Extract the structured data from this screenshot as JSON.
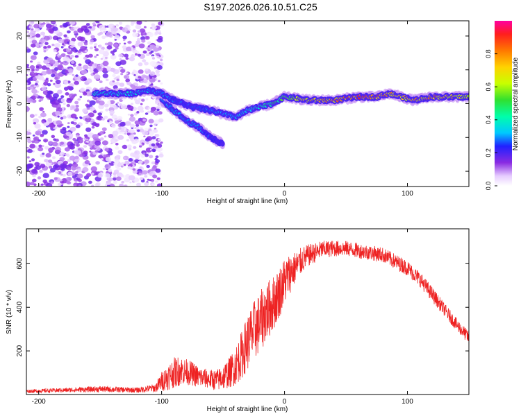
{
  "title": "S197.2026.026.10.51.C25",
  "chart_data": [
    {
      "type": "heatmap",
      "panel": "spectrogram",
      "xlabel": "Height of straight line (km)",
      "ylabel": "Frequency (Hz)",
      "xlim": [
        -210,
        150
      ],
      "ylim": [
        -24.5,
        24.5
      ],
      "xticks": [
        -200,
        -100,
        0,
        100
      ],
      "xtick_labels": [
        "-200",
        "-100",
        "0",
        "100"
      ],
      "yticks": [
        -20,
        -10,
        0,
        10,
        20
      ],
      "ytick_labels": [
        "-20",
        "-10",
        "0",
        "10",
        "20"
      ],
      "colorbar": {
        "label": "Normalized spectral amplitude",
        "range": [
          0,
          1
        ],
        "ticks": [
          0,
          0.2,
          0.4,
          0.6,
          0.8
        ],
        "tick_labels": [
          "0.0",
          "0.2",
          "0.4",
          "0.6",
          "0.8"
        ]
      },
      "ridge": {
        "x": [
          -155,
          -140,
          -125,
          -110,
          -100,
          -90,
          -75,
          -60,
          -50,
          -40,
          -30,
          -20,
          -10,
          0,
          20,
          40,
          60,
          75,
          85,
          95,
          105,
          120,
          140,
          150
        ],
        "freq": [
          3,
          3,
          3,
          4,
          3,
          1,
          -1,
          -2,
          -3,
          -4,
          -2,
          -1,
          0,
          2,
          1,
          1,
          2,
          2,
          3,
          2,
          1,
          2,
          2,
          2
        ],
        "amplitude": [
          0.35,
          0.35,
          0.35,
          0.3,
          0.3,
          0.25,
          0.25,
          0.3,
          0.3,
          0.3,
          0.35,
          0.4,
          0.45,
          0.5,
          0.7,
          0.75,
          0.8,
          0.8,
          0.75,
          0.7,
          0.7,
          0.75,
          0.7,
          0.6
        ]
      },
      "branch": {
        "x": [
          -100,
          -90,
          -80,
          -70,
          -60,
          -50
        ],
        "freq": [
          1,
          -2,
          -5,
          -7,
          -10,
          -12
        ],
        "amplitude": [
          0.3,
          0.3,
          0.3,
          0.3,
          0.25,
          0.2
        ]
      }
    },
    {
      "type": "line",
      "panel": "snr",
      "xlabel": "Height of straight line (km)",
      "ylabel": "SNR (10 * v/v)",
      "xlim": [
        -210,
        150
      ],
      "ylim": [
        0,
        760
      ],
      "xticks": [
        -200,
        -100,
        0,
        100
      ],
      "xtick_labels": [
        "-200",
        "-100",
        "0",
        "100"
      ],
      "yticks": [
        200,
        400,
        600
      ],
      "ytick_labels": [
        "200",
        "400",
        "600"
      ],
      "series": [
        {
          "name": "SNR",
          "color": "#ee2222",
          "x": [
            -210,
            -180,
            -150,
            -120,
            -105,
            -100,
            -95,
            -90,
            -85,
            -80,
            -75,
            -70,
            -65,
            -60,
            -55,
            -50,
            -45,
            -40,
            -35,
            -30,
            -25,
            -20,
            -15,
            -10,
            -5,
            0,
            5,
            10,
            15,
            20,
            25,
            30,
            40,
            50,
            60,
            70,
            80,
            90,
            100,
            110,
            120,
            130,
            140,
            150
          ],
          "values": [
            15,
            20,
            25,
            20,
            30,
            60,
            80,
            100,
            110,
            105,
            95,
            80,
            75,
            70,
            65,
            80,
            100,
            130,
            180,
            240,
            290,
            330,
            380,
            410,
            460,
            520,
            560,
            590,
            620,
            640,
            650,
            665,
            670,
            670,
            660,
            650,
            640,
            610,
            580,
            530,
            460,
            390,
            320,
            260
          ],
          "noise": [
            8,
            10,
            14,
            12,
            20,
            45,
            60,
            70,
            70,
            60,
            55,
            50,
            45,
            45,
            50,
            60,
            70,
            90,
            110,
            130,
            140,
            140,
            140,
            130,
            120,
            110,
            90,
            70,
            60,
            50,
            45,
            40,
            38,
            35,
            35,
            35,
            35,
            35,
            35,
            35,
            35,
            30,
            30,
            30
          ]
        }
      ]
    }
  ]
}
